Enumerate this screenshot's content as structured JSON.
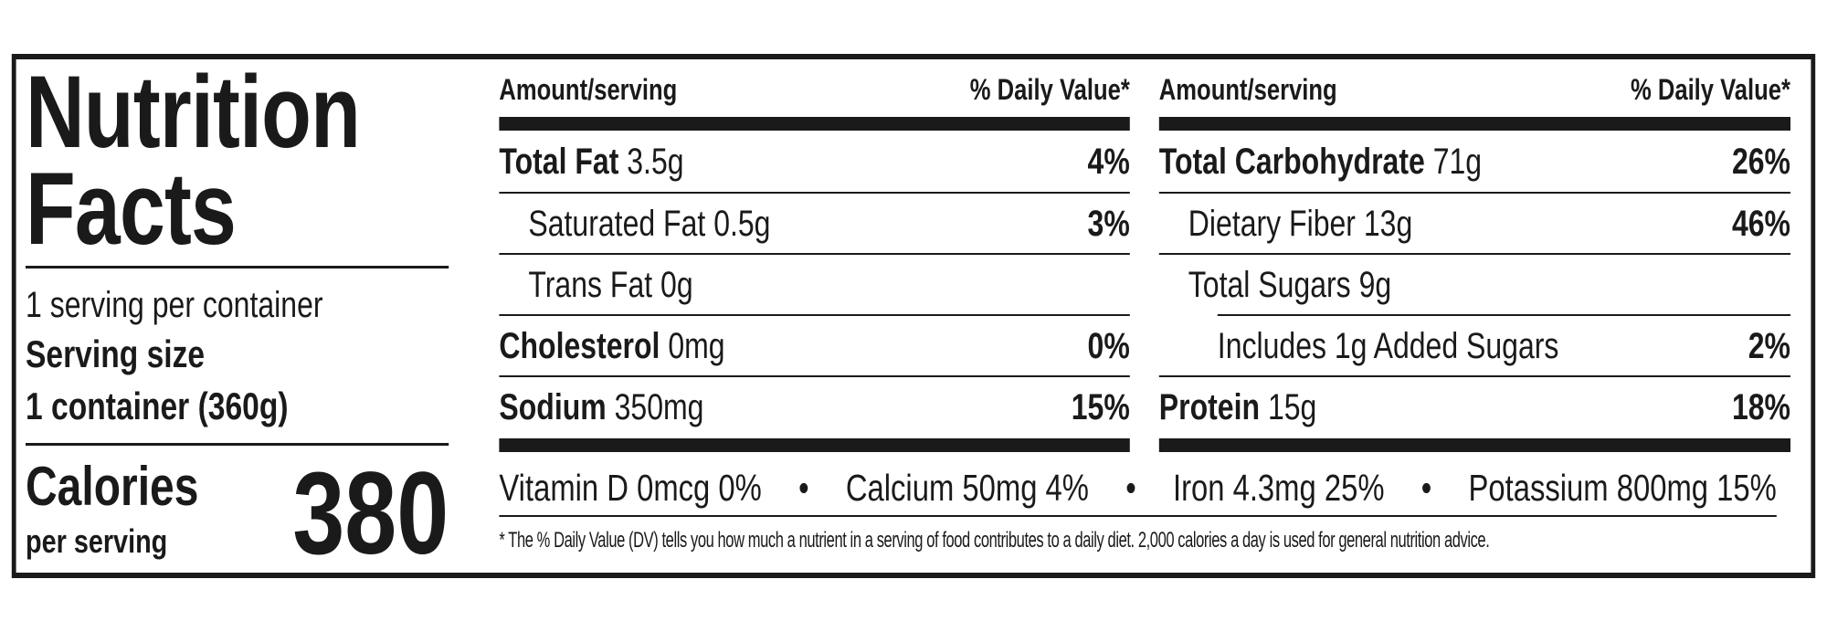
{
  "title": "Nutrition Facts",
  "servings_per_container": "1 serving per container",
  "serving_size_label": "Serving size",
  "serving_size": "1 container (360g)",
  "calories_label": "Calories",
  "calories_sub": "per serving",
  "calories": 380,
  "columns": [
    {
      "header_left": "Amount/serving",
      "header_right": "% Daily Value*",
      "rows": [
        {
          "name": "Total Fat",
          "amount": "3.5g",
          "dv": "4%",
          "level": 0
        },
        {
          "name": "Saturated Fat",
          "amount": "0.5g",
          "dv": "3%",
          "level": 1
        },
        {
          "name": "Trans Fat",
          "amount": "0g",
          "level": 1
        },
        {
          "name": "Cholesterol",
          "amount": "0mg",
          "dv": "0%",
          "level": 0
        },
        {
          "name": "Sodium",
          "amount": "350mg",
          "dv": "15%",
          "level": 0
        }
      ]
    },
    {
      "header_left": "Amount/serving",
      "header_right": "% Daily Value*",
      "rows": [
        {
          "name": "Total Carbohydrate",
          "amount": "71g",
          "dv": "26%",
          "level": 0
        },
        {
          "name": "Dietary Fiber",
          "amount": "13g",
          "dv": "46%",
          "level": 1
        },
        {
          "name": "Total Sugars",
          "amount": "9g",
          "level": 1
        },
        {
          "name": "Includes 1g Added Sugars",
          "dv": "2%",
          "level": 2
        },
        {
          "name": "Protein",
          "amount": "15g",
          "dv": "18%",
          "level": 0
        }
      ]
    }
  ],
  "micronutrients": [
    "Vitamin D 0mcg 0%",
    "Calcium 50mg 4%",
    "Iron 4.3mg 25%",
    "Potassium 800mg 15%"
  ],
  "footnote": "* The % Daily Value (DV) tells you how much a nutrient in a serving of food contributes to a daily diet. 2,000 calories a day is used for general nutrition advice."
}
